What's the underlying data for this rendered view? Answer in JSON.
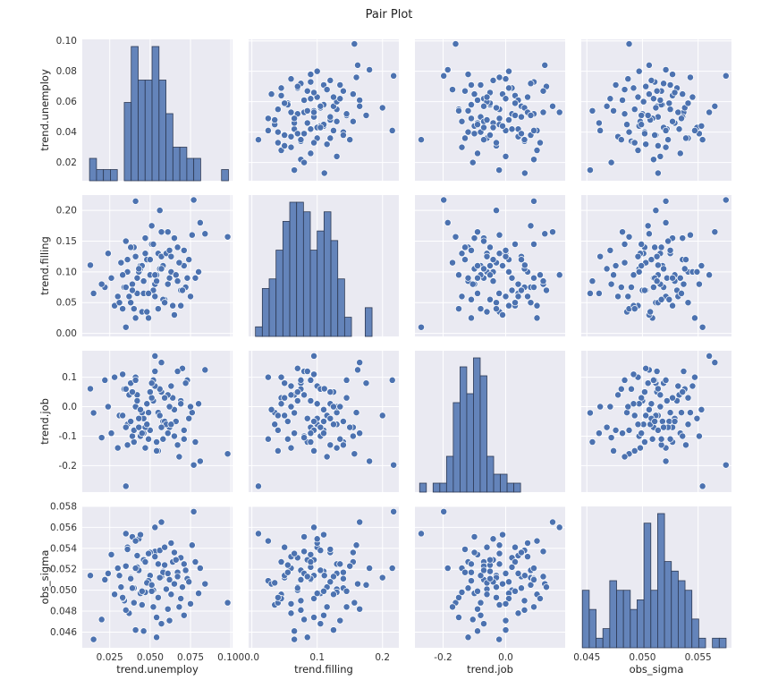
{
  "colors": {
    "panel_bg": "#eaeaf2",
    "grid": "#ffffff",
    "marker": "#4c72b0",
    "bar": "#4c72b0",
    "bar_edge": "#2f3b55",
    "marker_edge": "#ffffff"
  },
  "chart_data": {
    "type": "pairplot",
    "title": "Pair Plot",
    "variables": [
      {
        "name": "trend.unemploy",
        "range": [
          0.008,
          0.101
        ],
        "ticks": [
          0.02,
          0.04,
          0.06,
          0.08,
          0.1
        ],
        "tick_labels": [
          "0.02",
          "0.04",
          "0.06",
          "0.08",
          "0.10"
        ],
        "xticks": [
          0.025,
          0.05,
          0.075,
          0.1
        ],
        "xtick_labels": [
          "0.025",
          "0.050",
          "0.075",
          "0.100"
        ]
      },
      {
        "name": "trend.filling",
        "range": [
          -0.005,
          0.225
        ],
        "ticks": [
          0.0,
          0.05,
          0.1,
          0.15,
          0.2
        ],
        "tick_labels": [
          "0.00",
          "0.05",
          "0.10",
          "0.15",
          "0.20"
        ],
        "xticks": [
          0.0,
          0.1,
          0.2
        ],
        "xtick_labels": [
          "0.0",
          "0.1",
          "0.2"
        ]
      },
      {
        "name": "trend.job",
        "range": [
          -0.29,
          0.19
        ],
        "ticks": [
          -0.2,
          -0.1,
          0.0,
          0.1
        ],
        "tick_labels": [
          "-0.2",
          "-0.1",
          "0.0",
          "0.1"
        ],
        "xticks": [
          -0.2,
          0.0
        ],
        "xtick_labels": [
          "-0.2",
          "0.0"
        ]
      },
      {
        "name": "obs_sigma",
        "range": [
          0.0445,
          0.058
        ],
        "ticks": [
          0.046,
          0.048,
          0.05,
          0.052,
          0.054,
          0.056,
          0.058
        ],
        "tick_labels": [
          "0.046",
          "0.048",
          "0.050",
          "0.052",
          "0.054",
          "0.056",
          "0.058"
        ],
        "xticks": [
          0.045,
          0.05,
          0.055
        ],
        "xtick_labels": [
          "0.045",
          "0.050",
          "0.055"
        ]
      }
    ],
    "histograms": [
      {
        "bin_start": 0.0125,
        "bin_width": 0.0043,
        "counts": [
          1,
          0.5,
          0.5,
          0.5,
          0,
          3.5,
          6,
          4.5,
          4.5,
          6,
          4.5,
          3,
          1.5,
          1.5,
          1,
          1,
          0,
          0,
          0,
          0.5
        ]
      },
      {
        "bin_start": 0.0055,
        "bin_width": 0.0105,
        "counts": [
          0.5,
          2.5,
          3,
          4.5,
          6,
          7,
          7,
          6.5,
          4.5,
          5.5,
          6.5,
          5,
          3,
          1,
          0,
          0,
          1.5
        ]
      },
      {
        "bin_start": -0.275,
        "bin_width": 0.0215,
        "counts": [
          0.5,
          0,
          0.5,
          0.5,
          2,
          5,
          7,
          5.5,
          7.5,
          6.5,
          2,
          1,
          1,
          0.5,
          0.5
        ]
      },
      {
        "bin_start": 0.0446,
        "bin_width": 0.000615,
        "counts": [
          3,
          2,
          0.5,
          1,
          3.5,
          3,
          3,
          2,
          2.5,
          6.5,
          3,
          7,
          4.5,
          4,
          3.5,
          3,
          1.5,
          0.5,
          0,
          0.5,
          0.5
        ]
      }
    ],
    "points": [
      [
        0.098,
        0.157,
        -0.16,
        0.0488
      ],
      [
        0.084,
        0.162,
        0.125,
        0.0506
      ],
      [
        0.081,
        0.18,
        -0.185,
        0.0521
      ],
      [
        0.077,
        0.217,
        -0.198,
        0.0575
      ],
      [
        0.062,
        0.09,
        -0.07,
        0.051
      ],
      [
        0.058,
        0.11,
        -0.05,
        0.0518
      ],
      [
        0.055,
        0.13,
        -0.02,
        0.0525
      ],
      [
        0.052,
        0.07,
        0.02,
        0.05
      ],
      [
        0.05,
        0.095,
        -0.08,
        0.0514
      ],
      [
        0.048,
        0.12,
        0.01,
        0.0508
      ],
      [
        0.046,
        0.085,
        -0.04,
        0.0529
      ],
      [
        0.044,
        0.105,
        -0.1,
        0.0497
      ],
      [
        0.042,
        0.065,
        0.04,
        0.0533
      ],
      [
        0.04,
        0.14,
        -0.12,
        0.0502
      ],
      [
        0.038,
        0.05,
        0.08,
        0.0512
      ],
      [
        0.036,
        0.1,
        -0.06,
        0.0541
      ],
      [
        0.034,
        0.075,
        0.06,
        0.049
      ],
      [
        0.032,
        0.115,
        -0.03,
        0.0503
      ],
      [
        0.03,
        0.06,
        -0.14,
        0.0521
      ],
      [
        0.028,
        0.045,
        0.1,
        0.0496
      ],
      [
        0.026,
        0.09,
        -0.09,
        0.0534
      ],
      [
        0.024,
        0.13,
        0.0,
        0.0516
      ],
      [
        0.045,
        0.035,
        -0.02,
        0.0486
      ],
      [
        0.047,
        0.155,
        -0.07,
        0.0527
      ],
      [
        0.049,
        0.025,
        -0.11,
        0.0509
      ],
      [
        0.051,
        0.145,
        0.03,
        0.0499
      ],
      [
        0.053,
        0.08,
        0.12,
        0.0537
      ],
      [
        0.055,
        0.04,
        -0.15,
        0.0493
      ],
      [
        0.057,
        0.125,
        0.05,
        0.0513
      ],
      [
        0.059,
        0.055,
        -0.05,
        0.0524
      ],
      [
        0.061,
        0.165,
        -0.09,
        0.0482
      ],
      [
        0.063,
        0.1,
        0.07,
        0.0545
      ],
      [
        0.065,
        0.03,
        -0.01,
        0.0506
      ],
      [
        0.067,
        0.14,
        -0.13,
        0.0517
      ],
      [
        0.069,
        0.07,
        0.02,
        0.0531
      ],
      [
        0.071,
        0.11,
        -0.08,
        0.0476
      ],
      [
        0.073,
        0.09,
        0.09,
        0.0511
      ],
      [
        0.043,
        0.1,
        -0.04,
        0.0549
      ],
      [
        0.041,
        0.125,
        0.0,
        0.0462
      ],
      [
        0.039,
        0.08,
        -0.1,
        0.0551
      ],
      [
        0.037,
        0.06,
        0.04,
        0.0478
      ],
      [
        0.035,
        0.15,
        -0.07,
        0.0523
      ],
      [
        0.033,
        0.095,
        0.11,
        0.0492
      ],
      [
        0.031,
        0.05,
        -0.03,
        0.0514
      ],
      [
        0.054,
        0.085,
        -0.12,
        0.0455
      ],
      [
        0.056,
        0.105,
        0.06,
        0.0538
      ],
      [
        0.06,
        0.13,
        -0.06,
        0.0501
      ],
      [
        0.064,
        0.045,
        0.03,
        0.0527
      ],
      [
        0.068,
        0.115,
        -0.17,
        0.0484
      ],
      [
        0.072,
        0.075,
        0.08,
        0.0519
      ],
      [
        0.076,
        0.16,
        -0.02,
        0.0543
      ],
      [
        0.08,
        0.1,
        0.01,
        0.0497
      ],
      [
        0.046,
        0.065,
        -0.09,
        0.0461
      ],
      [
        0.05,
        0.12,
        0.05,
        0.0536
      ],
      [
        0.048,
        0.035,
        -0.06,
        0.0507
      ],
      [
        0.052,
        0.145,
        0.09,
        0.0484
      ],
      [
        0.044,
        0.11,
        -0.01,
        0.0553
      ],
      [
        0.058,
        0.055,
        -0.11,
        0.0517
      ],
      [
        0.062,
        0.135,
        0.0,
        0.0471
      ],
      [
        0.066,
        0.095,
        -0.05,
        0.0529
      ],
      [
        0.07,
        0.07,
        0.13,
        0.0503
      ],
      [
        0.056,
        0.2,
        -0.03,
        0.0512
      ],
      [
        0.04,
        0.04,
        -0.08,
        0.0488
      ],
      [
        0.042,
        0.09,
        0.02,
        0.0522
      ],
      [
        0.047,
        0.13,
        -0.14,
        0.0498
      ],
      [
        0.053,
        0.06,
        0.07,
        0.0532
      ],
      [
        0.057,
        0.105,
        -0.07,
        0.0468
      ],
      [
        0.061,
        0.08,
        0.04,
        0.0516
      ],
      [
        0.065,
        0.155,
        -0.1,
        0.0536
      ],
      [
        0.069,
        0.045,
        0.01,
        0.0492
      ],
      [
        0.074,
        0.12,
        -0.04,
        0.0508
      ],
      [
        0.078,
        0.09,
        -0.12,
        0.0527
      ],
      [
        0.035,
        0.075,
        0.06,
        0.0481
      ],
      [
        0.038,
        0.14,
        -0.05,
        0.0511
      ],
      [
        0.041,
        0.025,
        0.1,
        0.0547
      ],
      [
        0.045,
        0.11,
        -0.09,
        0.0499
      ],
      [
        0.049,
        0.065,
        -0.02,
        0.0535
      ],
      [
        0.051,
        0.175,
        0.08,
        0.0505
      ],
      [
        0.054,
        0.095,
        -0.15,
        0.0474
      ],
      [
        0.059,
        0.05,
        0.03,
        0.0541
      ],
      [
        0.063,
        0.125,
        -0.06,
        0.0496
      ],
      [
        0.067,
        0.085,
        0.12,
        0.0513
      ],
      [
        0.071,
        0.135,
        -0.11,
        0.0525
      ],
      [
        0.075,
        0.06,
        0.0,
        0.0487
      ],
      [
        0.043,
        0.105,
        -0.07,
        0.0519
      ],
      [
        0.039,
        0.07,
        0.05,
        0.0502
      ],
      [
        0.036,
        0.12,
        -0.13,
        0.0539
      ],
      [
        0.033,
        0.04,
        -0.03,
        0.0493
      ],
      [
        0.022,
        0.075,
        0.09,
        0.051
      ],
      [
        0.02,
        0.08,
        -0.105,
        0.0472
      ],
      [
        0.015,
        0.065,
        -0.021,
        0.0453
      ],
      [
        0.013,
        0.111,
        0.061,
        0.0514
      ],
      [
        0.035,
        0.01,
        -0.27,
        0.0554
      ],
      [
        0.041,
        0.215,
        0.09,
        0.0521
      ],
      [
        0.053,
        0.095,
        0.172,
        0.056
      ],
      [
        0.057,
        0.165,
        0.15,
        0.0565
      ]
    ]
  }
}
